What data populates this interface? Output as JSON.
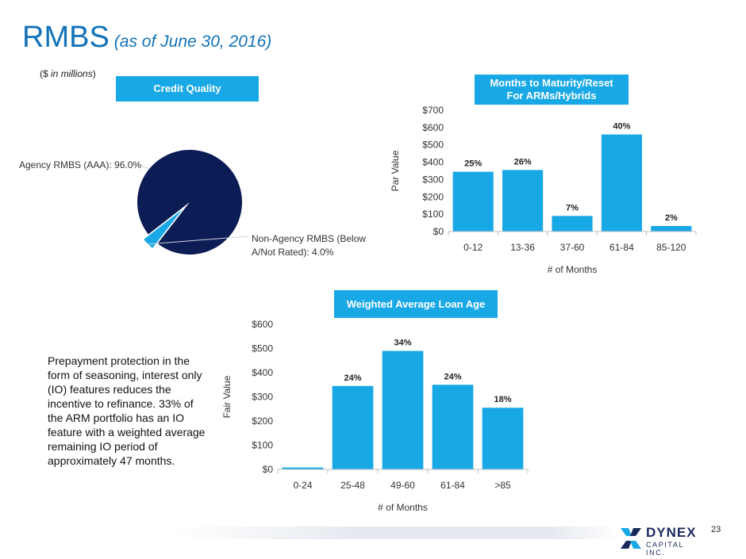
{
  "header": {
    "title": "RMBS",
    "subtitle": "(as of June 30, 2016)",
    "units_prefix": "($",
    "units_italic": "in millions",
    "units_suffix": ")"
  },
  "badges": {
    "credit_quality": "Credit Quality",
    "maturity_line1": "Months to Maturity/Reset",
    "maturity_line2": "For ARMs/Hybrids",
    "loan_age": "Weighted Average Loan Age"
  },
  "note": "Prepayment protection in the form of seasoning, interest only (IO) features reduces the incentive to refinance. 33% of the ARM portfolio has an IO feature with a weighted average remaining IO period of approximately 47 months.",
  "page_number": "23",
  "logo": {
    "name": "DYNEX",
    "sub": "CAPITAL INC."
  },
  "chart_data": [
    {
      "id": "credit_quality",
      "type": "pie",
      "title": "Credit Quality",
      "slices": [
        {
          "label_line1": "Agency RMBS (AAA): 96.0%",
          "label_line2": "",
          "value": 96.0,
          "color": "#0c1c54"
        },
        {
          "label_line1": "Non-Agency RMBS (Below",
          "label_line2": "A/Not Rated): 4.0%",
          "value": 4.0,
          "color": "#19a8e6"
        }
      ]
    },
    {
      "id": "maturity",
      "type": "bar",
      "title": "Months to Maturity/Reset For ARMs/Hybrids",
      "categories": [
        "0-12",
        "13-36",
        "37-60",
        "61-84",
        "85-120"
      ],
      "values": [
        345,
        355,
        90,
        560,
        32
      ],
      "data_labels": [
        "25%",
        "26%",
        "7%",
        "40%",
        "2%"
      ],
      "xlabel": "# of Months",
      "ylabel": "Par Value",
      "ylim": [
        0,
        700
      ],
      "yticks": [
        0,
        100,
        200,
        300,
        400,
        500,
        600,
        700
      ],
      "ytick_labels": [
        "$0",
        "$100",
        "$200",
        "$300",
        "$400",
        "$500",
        "$600",
        "$700"
      ],
      "grid": false,
      "color": "#19a8e6"
    },
    {
      "id": "loan_age",
      "type": "bar",
      "title": "Weighted Average Loan Age",
      "categories": [
        "0-24",
        "25-48",
        "49-60",
        "61-84",
        ">85"
      ],
      "values": [
        8,
        345,
        490,
        350,
        255
      ],
      "data_labels": [
        "",
        "24%",
        "34%",
        "24%",
        "18%"
      ],
      "xlabel": "# of Months",
      "ylabel": "Fair Value",
      "ylim": [
        0,
        600
      ],
      "yticks": [
        0,
        100,
        200,
        300,
        400,
        500,
        600
      ],
      "ytick_labels": [
        "$0",
        "$100",
        "$200",
        "$300",
        "$400",
        "$500",
        "$600"
      ],
      "grid": false,
      "color": "#19a8e6"
    }
  ]
}
